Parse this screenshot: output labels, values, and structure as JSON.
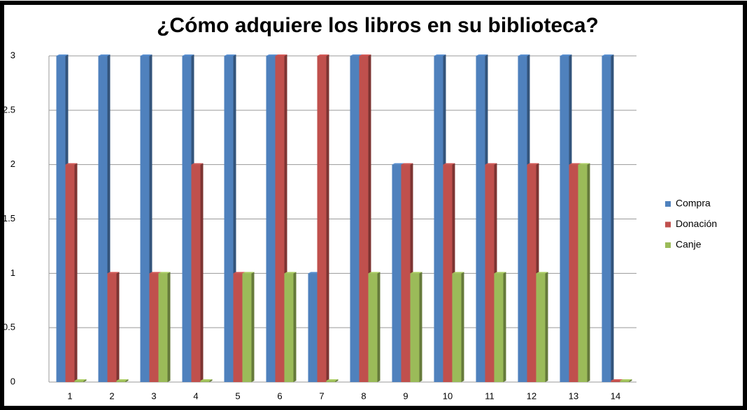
{
  "chart_data": {
    "type": "bar",
    "title": "¿Cómo adquiere los libros en su biblioteca?",
    "categories": [
      "1",
      "2",
      "3",
      "4",
      "5",
      "6",
      "7",
      "8",
      "9",
      "10",
      "11",
      "12",
      "13",
      "14"
    ],
    "series": [
      {
        "name": "Compra",
        "color": "#4f81bd",
        "values": [
          3,
          3,
          3,
          3,
          3,
          3,
          1,
          3,
          2,
          3,
          3,
          3,
          3,
          3
        ]
      },
      {
        "name": "Donación",
        "color": "#c0504d",
        "values": [
          2,
          1,
          1,
          2,
          1,
          3,
          3,
          3,
          2,
          2,
          2,
          2,
          2,
          0
        ]
      },
      {
        "name": "Canje",
        "color": "#9bbb59",
        "values": [
          0,
          0,
          1,
          0,
          1,
          1,
          0,
          1,
          1,
          1,
          1,
          1,
          2,
          0
        ]
      }
    ],
    "ylim": [
      0,
      3
    ],
    "yticks": [
      0,
      0.5,
      1,
      1.5,
      2,
      2.5,
      3
    ],
    "grid": true,
    "legend": "right"
  }
}
